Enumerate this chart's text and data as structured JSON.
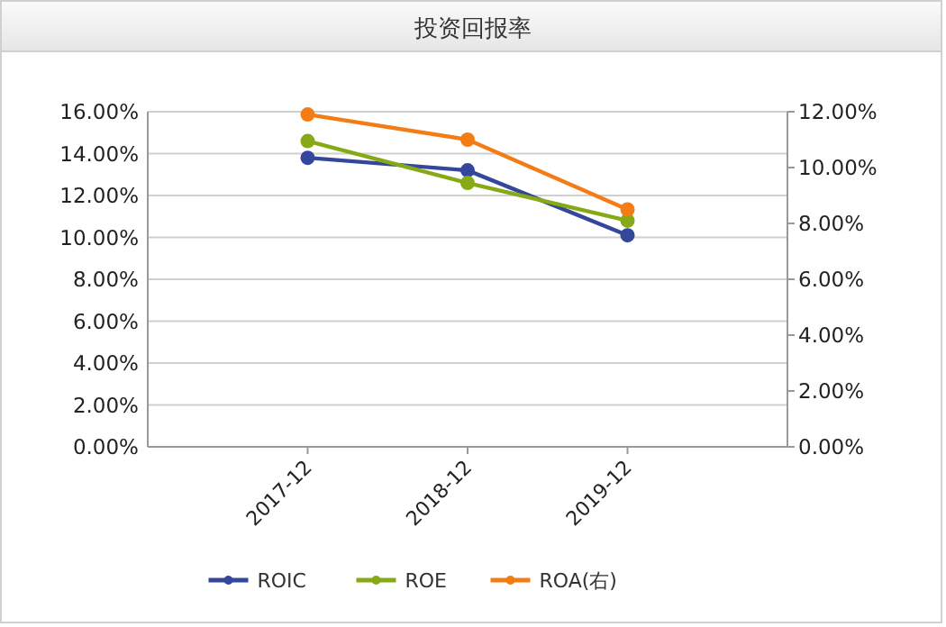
{
  "chart_data": {
    "type": "line",
    "title": "投资回报率",
    "categories": [
      "2017-12",
      "2018-12",
      "2019-12"
    ],
    "series": [
      {
        "name": "ROIC",
        "color": "#34479a",
        "values": [
          13.8,
          13.2,
          10.1
        ]
      },
      {
        "name": "ROE",
        "color": "#86aa16",
        "values": [
          14.6,
          12.6,
          10.8
        ]
      },
      {
        "name": "ROA(右)",
        "color": "#f47c14",
        "values": [
          11.9,
          11.0,
          8.5
        ],
        "axis": "y2"
      }
    ],
    "ylim": [
      0,
      16
    ],
    "yticks": [
      {
        "value": 0,
        "label": "0.00%"
      },
      {
        "value": 2,
        "label": "2.00%"
      },
      {
        "value": 4,
        "label": "4.00%"
      },
      {
        "value": 6,
        "label": "6.00%"
      },
      {
        "value": 8,
        "label": "8.00%"
      },
      {
        "value": 10,
        "label": "10.00%"
      },
      {
        "value": 12,
        "label": "12.00%"
      },
      {
        "value": 14,
        "label": "14.00%"
      },
      {
        "value": 16,
        "label": "16.00%"
      }
    ],
    "y2lim": [
      0,
      12
    ],
    "y2ticks": [
      {
        "value": 0,
        "label": "0.00%"
      },
      {
        "value": 2,
        "label": "2.00%"
      },
      {
        "value": 4,
        "label": "4.00%"
      },
      {
        "value": 6,
        "label": "6.00%"
      },
      {
        "value": 8,
        "label": "8.00%"
      },
      {
        "value": 10,
        "label": "10.00%"
      },
      {
        "value": 12,
        "label": "12.00%"
      }
    ],
    "grid": "y",
    "legend": "bottom",
    "marker": "circle",
    "line_style": "solid"
  }
}
